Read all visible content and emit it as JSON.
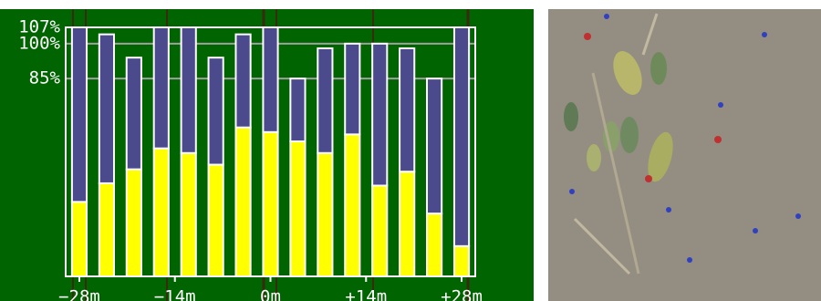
{
  "chart_data": {
    "type": "stacked-bar",
    "x": [
      -28,
      -24,
      -20,
      -16,
      -12,
      -8,
      -4,
      0,
      4,
      8,
      12,
      16,
      20,
      24,
      28
    ],
    "series": [
      {
        "color": "#ffff00",
        "values": [
          32,
          40,
          46,
          55,
          53,
          48,
          64,
          62,
          58,
          53,
          61,
          39,
          45,
          27,
          13
        ]
      },
      {
        "color": "#4a4a8c",
        "values": [
          75,
          64,
          48,
          52,
          54,
          46,
          40,
          45,
          27,
          45,
          39,
          61,
          53,
          58,
          94
        ]
      }
    ],
    "xlim": [
      -30,
      30
    ],
    "xticks": [
      {
        "value": -28,
        "label": "−28m"
      },
      {
        "value": -14,
        "label": "−14m"
      },
      {
        "value": 0,
        "label": "0m"
      },
      {
        "value": 14,
        "label": "+14m"
      },
      {
        "value": 28,
        "label": "+28m"
      }
    ],
    "ylim": [
      0,
      107
    ],
    "yticks": [
      {
        "value": 107,
        "label": "107%"
      },
      {
        "value": 100,
        "label": "100%"
      },
      {
        "value": 85,
        "label": "85%"
      }
    ],
    "grid": true
  }
}
